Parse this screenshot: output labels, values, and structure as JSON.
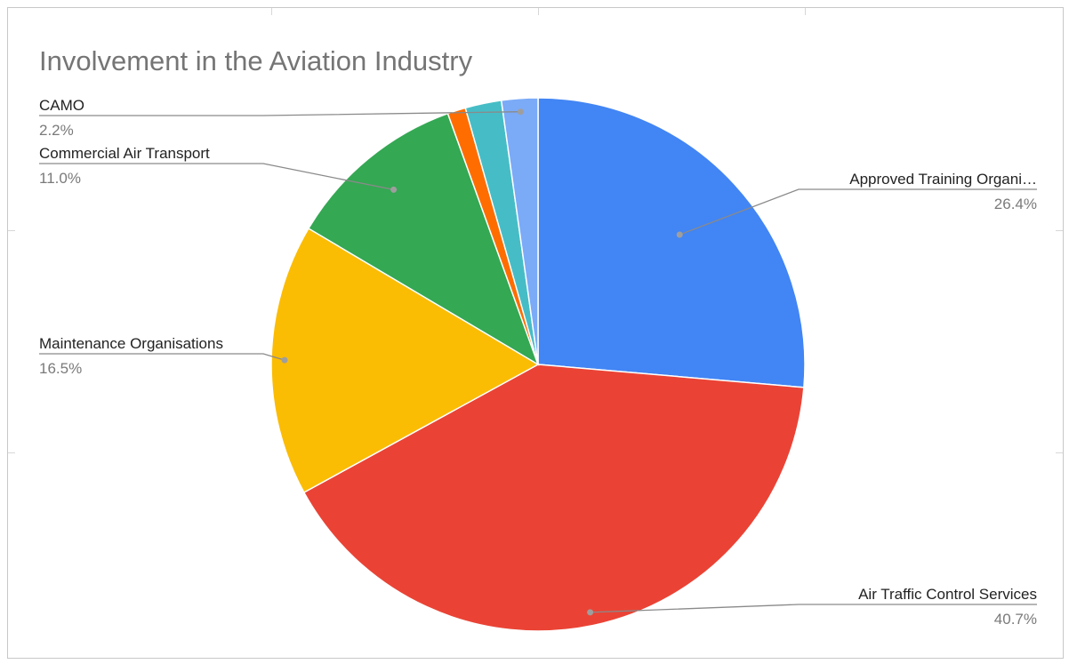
{
  "chart_data": {
    "type": "pie",
    "title": "Involvement in the Aviation Industry",
    "slices": [
      {
        "name": "Approved Training Organi…",
        "value": 26.4,
        "label": "26.4%",
        "color": "#4285F4"
      },
      {
        "name": "Air Traffic Control Services",
        "value": 40.7,
        "label": "40.7%",
        "color": "#EA4335"
      },
      {
        "name": "Maintenance Organisations",
        "value": 16.5,
        "label": "16.5%",
        "color": "#FBBC04"
      },
      {
        "name": "Commercial Air Transport",
        "value": 11.0,
        "label": "11.0%",
        "color": "#34A853"
      },
      {
        "name": "",
        "value": 1.1,
        "label": "",
        "color": "#FF6D01"
      },
      {
        "name": "",
        "value": 2.2,
        "label": "",
        "color": "#46BDC6"
      },
      {
        "name": "CAMO",
        "value": 2.2,
        "label": "2.2%",
        "color": "#7BAAF7"
      }
    ],
    "legend": "none"
  }
}
